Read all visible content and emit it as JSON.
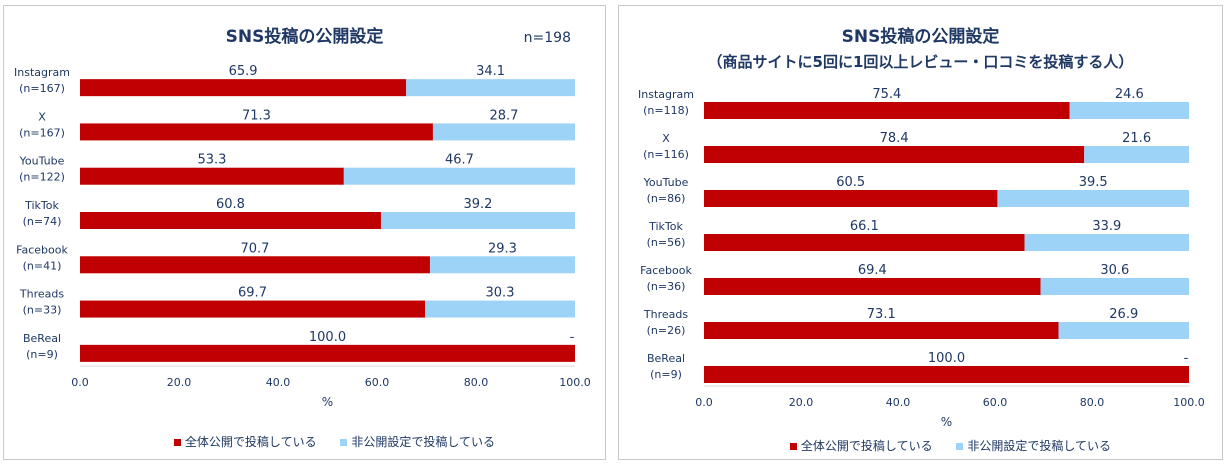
{
  "colors": {
    "public": "#c00000",
    "nonpublic": "#9dd3f7",
    "text": "#1f3864",
    "axis": "#7f7f7f"
  },
  "legend": {
    "public": "全体公開で投稿している",
    "nonpublic": "非公開設定で投稿している"
  },
  "chart_data": [
    {
      "type": "bar",
      "orientation": "horizontal",
      "stacked": true,
      "title": "SNS投稿の公開設定",
      "subtitle": "",
      "note": "n=198",
      "xlabel": "%",
      "xlim": [
        0,
        100
      ],
      "xticks": [
        "0.0",
        "20.0",
        "40.0",
        "60.0",
        "80.0",
        "100.0"
      ],
      "categories": [
        {
          "name": "Instagram",
          "n": "(n=167)"
        },
        {
          "name": "X",
          "n": "(n=167)"
        },
        {
          "name": "YouTube",
          "n": "(n=122)"
        },
        {
          "name": "TikTok",
          "n": "(n=74)"
        },
        {
          "name": "Facebook",
          "n": "(n=41)"
        },
        {
          "name": "Threads",
          "n": "(n=33)"
        },
        {
          "name": "BeReal",
          "n": "(n=9)"
        }
      ],
      "series": [
        {
          "name": "全体公開で投稿している",
          "values": [
            65.9,
            71.3,
            53.3,
            60.8,
            70.7,
            69.7,
            100.0
          ],
          "labels": [
            "65.9",
            "71.3",
            "53.3",
            "60.8",
            "70.7",
            "69.7",
            "100.0"
          ]
        },
        {
          "name": "非公開設定で投稿している",
          "values": [
            34.1,
            28.7,
            46.7,
            39.2,
            29.3,
            30.3,
            0
          ],
          "labels": [
            "34.1",
            "28.7",
            "46.7",
            "39.2",
            "29.3",
            "30.3",
            "-"
          ]
        }
      ]
    },
    {
      "type": "bar",
      "orientation": "horizontal",
      "stacked": true,
      "title": "SNS投稿の公開設定",
      "subtitle": "（商品サイトに5回に1回以上レビュー・口コミを投稿する人）",
      "note": "",
      "xlabel": "%",
      "xlim": [
        0,
        100
      ],
      "xticks": [
        "0.0",
        "20.0",
        "40.0",
        "60.0",
        "80.0",
        "100.0"
      ],
      "categories": [
        {
          "name": "Instagram",
          "n": "(n=118)"
        },
        {
          "name": "X",
          "n": "(n=116)"
        },
        {
          "name": "YouTube",
          "n": "(n=86)"
        },
        {
          "name": "TikTok",
          "n": "(n=56)"
        },
        {
          "name": "Facebook",
          "n": "(n=36)"
        },
        {
          "name": "Threads",
          "n": "(n=26)"
        },
        {
          "name": "BeReal",
          "n": "(n=9)"
        }
      ],
      "series": [
        {
          "name": "全体公開で投稿している",
          "values": [
            75.4,
            78.4,
            60.5,
            66.1,
            69.4,
            73.1,
            100.0
          ],
          "labels": [
            "75.4",
            "78.4",
            "60.5",
            "66.1",
            "69.4",
            "73.1",
            "100.0"
          ]
        },
        {
          "name": "非公開設定で投稿している",
          "values": [
            24.6,
            21.6,
            39.5,
            33.9,
            30.6,
            26.9,
            0
          ],
          "labels": [
            "24.6",
            "21.6",
            "39.5",
            "33.9",
            "30.6",
            "26.9",
            "-"
          ]
        }
      ]
    }
  ]
}
